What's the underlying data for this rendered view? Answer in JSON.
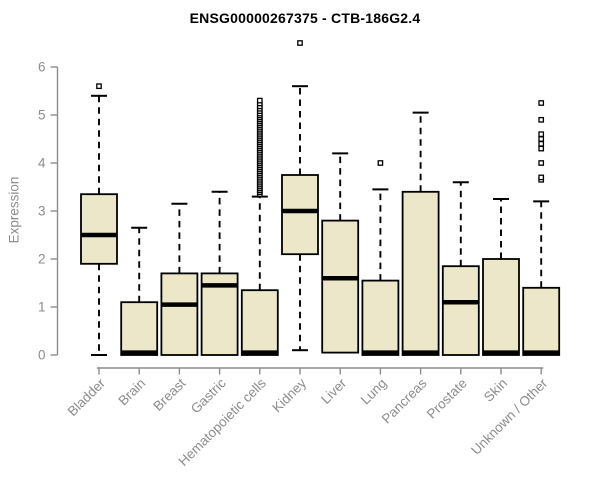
{
  "chart_data": {
    "type": "boxplot",
    "title": "ENSG00000267375 - CTB-186G2.4",
    "ylabel": "Expression",
    "ylim": [
      0,
      6.6
    ],
    "yticks": [
      0,
      1,
      2,
      3,
      4,
      5,
      6
    ],
    "grid": false,
    "legend": "none",
    "categories": [
      "Bladder",
      "Brain",
      "Breast",
      "Gastric",
      "Hematopoietic cells",
      "Kidney",
      "Liver",
      "Lung",
      "Pancreas",
      "Prostate",
      "Skin",
      "Unknown / Other"
    ],
    "boxes": [
      {
        "category": "Bladder",
        "whisker_low": 0,
        "q1": 1.9,
        "median": 2.5,
        "q3": 3.35,
        "whisker_high": 5.4,
        "outliers": [
          5.6
        ]
      },
      {
        "category": "Brain",
        "whisker_low": 0,
        "q1": 0,
        "median": 0.05,
        "q3": 1.1,
        "whisker_high": 2.65,
        "outliers": []
      },
      {
        "category": "Breast",
        "whisker_low": 0,
        "q1": 0,
        "median": 1.05,
        "q3": 1.7,
        "whisker_high": 3.15,
        "outliers": []
      },
      {
        "category": "Gastric",
        "whisker_low": 0,
        "q1": 0,
        "median": 1.45,
        "q3": 1.7,
        "whisker_high": 3.4,
        "outliers": []
      },
      {
        "category": "Hematopoietic cells",
        "whisker_low": 0,
        "q1": 0,
        "median": 0.05,
        "q3": 1.35,
        "whisker_high": 3.3,
        "outliers": [
          3.35,
          3.39,
          3.43,
          3.47,
          3.51,
          3.55,
          3.59,
          3.63,
          3.67,
          3.71,
          3.75,
          3.79,
          3.83,
          3.87,
          3.91,
          3.95,
          3.99,
          4.03,
          4.07,
          4.11,
          4.15,
          4.19,
          4.23,
          4.27,
          4.31,
          4.35,
          4.39,
          4.43,
          4.47,
          4.51,
          4.55,
          4.59,
          4.63,
          4.67,
          4.71,
          4.75,
          4.79,
          4.83,
          4.87,
          4.91,
          4.95,
          4.99,
          5.03,
          5.08,
          5.13,
          5.18,
          5.24,
          5.3
        ]
      },
      {
        "category": "Kidney",
        "whisker_low": 0.1,
        "q1": 2.1,
        "median": 3.0,
        "q3": 3.75,
        "whisker_high": 5.6,
        "outliers": [
          6.5
        ]
      },
      {
        "category": "Liver",
        "whisker_low": 0.05,
        "q1": 0.05,
        "median": 1.6,
        "q3": 2.8,
        "whisker_high": 4.2,
        "outliers": []
      },
      {
        "category": "Lung",
        "whisker_low": 0,
        "q1": 0,
        "median": 0.05,
        "q3": 1.55,
        "whisker_high": 3.45,
        "outliers": [
          4.0
        ]
      },
      {
        "category": "Pancreas",
        "whisker_low": 0,
        "q1": 0,
        "median": 0.05,
        "q3": 3.4,
        "whisker_high": 5.05,
        "outliers": []
      },
      {
        "category": "Prostate",
        "whisker_low": 0,
        "q1": 0,
        "median": 1.1,
        "q3": 1.85,
        "whisker_high": 3.6,
        "outliers": []
      },
      {
        "category": "Skin",
        "whisker_low": 0,
        "q1": 0,
        "median": 0.05,
        "q3": 2.0,
        "whisker_high": 3.25,
        "outliers": []
      },
      {
        "category": "Unknown / Other",
        "whisker_low": 0,
        "q1": 0,
        "median": 0.05,
        "q3": 1.4,
        "whisker_high": 3.2,
        "outliers": [
          3.65,
          3.7,
          4.0,
          4.3,
          4.4,
          4.5,
          4.6,
          4.9,
          5.25
        ]
      }
    ]
  },
  "colors": {
    "background": "#FFFFFF",
    "box_fill": "#ECE7C8",
    "box_stroke": "#000000",
    "median": "#000000",
    "whisker": "#000000",
    "outlier_stroke": "#000000",
    "outlier_fill": "#FFFFFF",
    "axis": "#8C8C8C",
    "tick_label": "#8C8C8C",
    "title": "#000000"
  }
}
